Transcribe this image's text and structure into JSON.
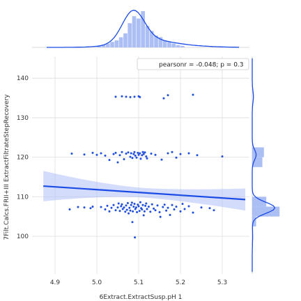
{
  "chart_data": {
    "type": "scatter",
    "xlabel": "6Extract.ExtractSusp.pH 1",
    "ylabel": "7Filt.Calcs.FRII+III ExtractFiltrateStepRecovery",
    "xlim": [
      4.845,
      5.365
    ],
    "ylim": [
      90.5,
      145.5
    ],
    "xticks": [
      4.9,
      5.0,
      5.1,
      5.2,
      5.3
    ],
    "xtick_labels": [
      "4.9",
      "5.0",
      "5.1",
      "5.2",
      "5.3"
    ],
    "yticks": [
      100,
      110,
      120,
      130,
      140
    ],
    "ytick_labels": [
      "100",
      "110",
      "120",
      "130",
      "140"
    ],
    "grid": true,
    "legend": {
      "placement": "top-right",
      "text": "pearsonr = -0.048; p = 0.3"
    },
    "colors": {
      "points": "#1f4ee0",
      "line": "#1a4be6",
      "band": "#aebff5",
      "hist": "#9db4f3"
    },
    "regression": {
      "x": [
        4.872,
        5.355
      ],
      "y": [
        112.7,
        109.3
      ],
      "ci_low": [
        108.9,
        106.5
      ],
      "ci_high": [
        116.6,
        112.1
      ]
    },
    "points": [
      [
        5.045,
        135.3
      ],
      [
        5.06,
        135.4
      ],
      [
        5.07,
        135.3
      ],
      [
        5.08,
        135.2
      ],
      [
        5.09,
        135.3
      ],
      [
        5.1,
        135.4
      ],
      [
        5.103,
        135.2
      ],
      [
        5.16,
        134.9
      ],
      [
        5.17,
        135.7
      ],
      [
        5.23,
        135.8
      ],
      [
        4.94,
        120.9
      ],
      [
        4.97,
        120.7
      ],
      [
        4.99,
        121.1
      ],
      [
        5.0,
        120.6
      ],
      [
        5.01,
        121.0
      ],
      [
        5.02,
        120.4
      ],
      [
        5.03,
        119.3
      ],
      [
        5.04,
        120.8
      ],
      [
        5.045,
        121.1
      ],
      [
        5.05,
        118.7
      ],
      [
        5.055,
        120.5
      ],
      [
        5.06,
        121.3
      ],
      [
        5.065,
        119.5
      ],
      [
        5.07,
        120.9
      ],
      [
        5.075,
        121.2
      ],
      [
        5.08,
        120.1
      ],
      [
        5.082,
        121.0
      ],
      [
        5.085,
        119.8
      ],
      [
        5.088,
        120.8
      ],
      [
        5.09,
        121.3
      ],
      [
        5.092,
        120.4
      ],
      [
        5.095,
        119.9
      ],
      [
        5.098,
        121.1
      ],
      [
        5.1,
        120.6
      ],
      [
        5.103,
        121.0
      ],
      [
        5.105,
        119.6
      ],
      [
        5.108,
        120.5
      ],
      [
        5.11,
        121.3
      ],
      [
        5.112,
        120.8
      ],
      [
        5.115,
        121.2
      ],
      [
        5.118,
        120.2
      ],
      [
        5.12,
        119.7
      ],
      [
        5.13,
        120.9
      ],
      [
        5.14,
        120.6
      ],
      [
        5.155,
        119.4
      ],
      [
        5.17,
        121.0
      ],
      [
        5.18,
        121.3
      ],
      [
        5.19,
        119.9
      ],
      [
        5.2,
        120.8
      ],
      [
        5.22,
        121.0
      ],
      [
        5.24,
        120.5
      ],
      [
        5.3,
        120.2
      ],
      [
        4.935,
        106.8
      ],
      [
        4.955,
        107.4
      ],
      [
        4.97,
        107.3
      ],
      [
        4.985,
        107.1
      ],
      [
        4.99,
        107.5
      ],
      [
        5.01,
        107.4
      ],
      [
        5.02,
        106.8
      ],
      [
        5.025,
        107.7
      ],
      [
        5.03,
        106.3
      ],
      [
        5.035,
        107.2
      ],
      [
        5.04,
        107.9
      ],
      [
        5.045,
        106.6
      ],
      [
        5.05,
        107.3
      ],
      [
        5.052,
        108.3
      ],
      [
        5.055,
        106.4
      ],
      [
        5.058,
        107.6
      ],
      [
        5.06,
        108.1
      ],
      [
        5.062,
        106.9
      ],
      [
        5.065,
        107.3
      ],
      [
        5.068,
        106.2
      ],
      [
        5.07,
        107.8
      ],
      [
        5.072,
        106.7
      ],
      [
        5.074,
        108.4
      ],
      [
        5.076,
        105.8
      ],
      [
        5.078,
        107.2
      ],
      [
        5.08,
        106.5
      ],
      [
        5.082,
        107.9
      ],
      [
        5.084,
        108.5
      ],
      [
        5.085,
        103.6
      ],
      [
        5.086,
        106.3
      ],
      [
        5.088,
        107.5
      ],
      [
        5.09,
        108.2
      ],
      [
        5.091,
        99.7
      ],
      [
        5.092,
        106.9
      ],
      [
        5.094,
        107.3
      ],
      [
        5.096,
        106.1
      ],
      [
        5.098,
        108.0
      ],
      [
        5.1,
        107.6
      ],
      [
        5.102,
        106.4
      ],
      [
        5.104,
        108.6
      ],
      [
        5.106,
        107.1
      ],
      [
        5.108,
        106.8
      ],
      [
        5.11,
        107.9
      ],
      [
        5.112,
        105.3
      ],
      [
        5.114,
        106.3
      ],
      [
        5.116,
        107.7
      ],
      [
        5.118,
        108.3
      ],
      [
        5.12,
        106.9
      ],
      [
        5.124,
        107.5
      ],
      [
        5.128,
        106.2
      ],
      [
        5.132,
        108.1
      ],
      [
        5.136,
        107.0
      ],
      [
        5.14,
        106.6
      ],
      [
        5.145,
        107.8
      ],
      [
        5.15,
        106.1
      ],
      [
        5.152,
        104.9
      ],
      [
        5.158,
        107.4
      ],
      [
        5.162,
        108.0
      ],
      [
        5.166,
        106.5
      ],
      [
        5.17,
        107.2
      ],
      [
        5.175,
        105.4
      ],
      [
        5.18,
        107.9
      ],
      [
        5.185,
        106.8
      ],
      [
        5.19,
        107.5
      ],
      [
        5.2,
        106.3
      ],
      [
        5.205,
        108.2
      ],
      [
        5.21,
        106.9
      ],
      [
        5.22,
        107.6
      ],
      [
        5.23,
        106.0
      ],
      [
        5.25,
        107.3
      ],
      [
        5.27,
        107.1
      ],
      [
        5.28,
        106.6
      ]
    ]
  }
}
